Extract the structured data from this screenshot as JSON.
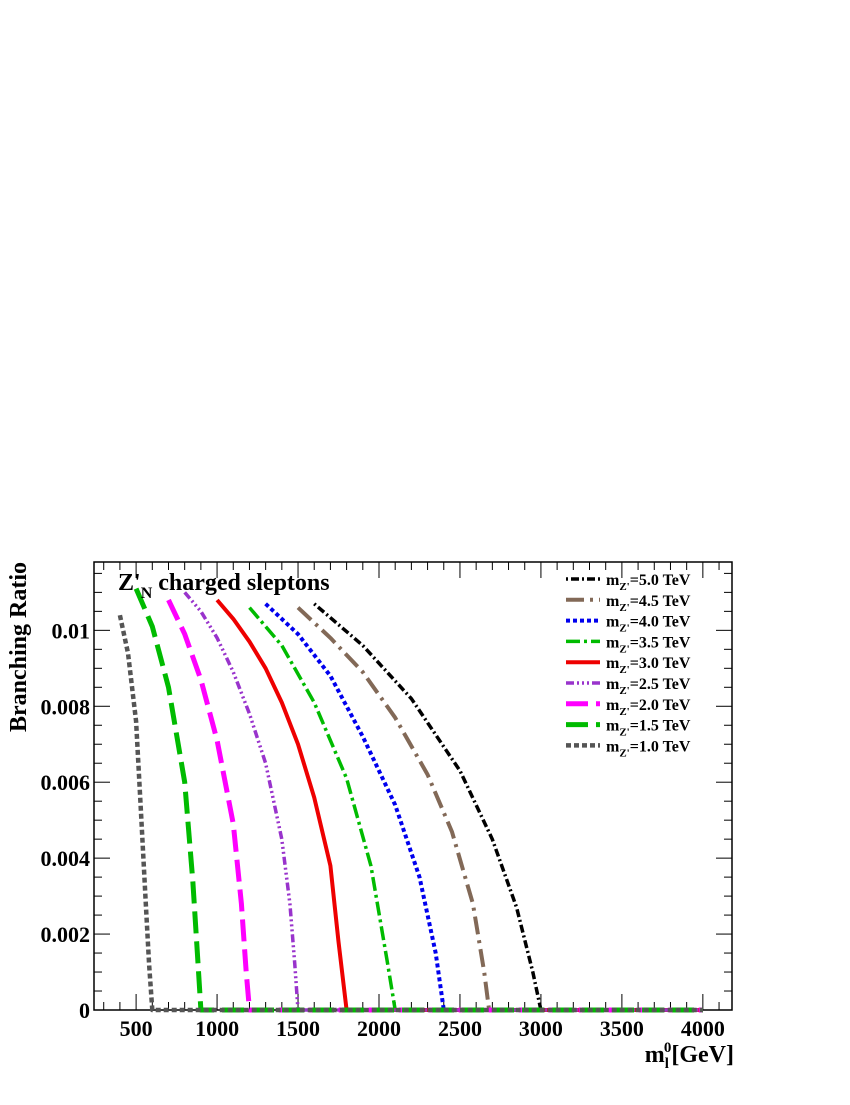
{
  "chart_data": {
    "type": "line",
    "title": "Z'",
    "title_subscript": "N",
    "title_suffix": "charged sleptons",
    "xlabel": "m",
    "xlabel_sub": "l",
    "xlabel_sup": "0",
    "xlabel_suffix": "[GeV]",
    "ylabel": "Branching Ratio",
    "xlim": [
      240,
      4180
    ],
    "ylim": [
      0,
      0.0118
    ],
    "x_ticks": [
      500,
      1000,
      1500,
      2000,
      2500,
      3000,
      3500,
      4000
    ],
    "x_tick_labels": [
      "500",
      "1000",
      "1500",
      "2000",
      "2500",
      "3000",
      "3500",
      "4000"
    ],
    "y_ticks": [
      0,
      0.002,
      0.004,
      0.006,
      0.008,
      0.01
    ],
    "y_tick_labels": [
      "0",
      "0.002",
      "0.004",
      "0.006",
      "0.008",
      "0.01"
    ],
    "grid": false,
    "legend_position": "top-right",
    "legend_prefix": "m",
    "legend_sub": "Z'",
    "series": [
      {
        "name": "=5.0 TeV",
        "color": "#000000",
        "dash": "2,3 8,3",
        "width": 3.5,
        "x": [
          1600,
          1900,
          2200,
          2500,
          2700,
          2850,
          2950,
          3000
        ],
        "y": [
          0.0107,
          0.0096,
          0.0082,
          0.0063,
          0.0045,
          0.0027,
          0.001,
          0
        ]
      },
      {
        "name": "=4.5 TeV",
        "color": "#826957",
        "dash": "18,6 3,6",
        "width": 4,
        "x": [
          1500,
          1700,
          1900,
          2100,
          2300,
          2450,
          2580,
          2650,
          2680
        ],
        "y": [
          0.0106,
          0.0098,
          0.0089,
          0.0077,
          0.0062,
          0.0047,
          0.0028,
          0.001,
          0
        ]
      },
      {
        "name": "=4.0 TeV",
        "color": "#0000ee",
        "dash": "4,3",
        "width": 4,
        "x": [
          1300,
          1500,
          1700,
          1900,
          2100,
          2250,
          2350,
          2400
        ],
        "y": [
          0.0107,
          0.0099,
          0.0088,
          0.0072,
          0.0054,
          0.0035,
          0.0015,
          0
        ]
      },
      {
        "name": "=3.5 TeV",
        "color": "#00bb00",
        "dash": "14,4 3,4",
        "width": 3.5,
        "x": [
          1200,
          1400,
          1600,
          1800,
          1950,
          2050,
          2100
        ],
        "y": [
          0.0106,
          0.0096,
          0.0081,
          0.0061,
          0.0038,
          0.0013,
          0
        ]
      },
      {
        "name": "=3.0 TeV",
        "color": "#ee0000",
        "dash": "",
        "width": 4,
        "x": [
          1000,
          1100,
          1200,
          1300,
          1400,
          1500,
          1600,
          1700,
          1750,
          1800
        ],
        "y": [
          0.0108,
          0.0103,
          0.0097,
          0.009,
          0.0081,
          0.007,
          0.0056,
          0.0038,
          0.0018,
          0
        ]
      },
      {
        "name": "=2.5 TeV",
        "color": "#9933cc",
        "dash": "8,3 2,3 2,3 2,3",
        "width": 3.5,
        "x": [
          800,
          900,
          1000,
          1100,
          1200,
          1300,
          1400,
          1450,
          1480,
          1500
        ],
        "y": [
          0.011,
          0.0105,
          0.0098,
          0.0089,
          0.0078,
          0.0065,
          0.0045,
          0.0028,
          0.0012,
          0
        ]
      },
      {
        "name": "=2.0 TeV",
        "color": "#ff00ff",
        "dash": "22,8",
        "width": 5,
        "x": [
          700,
          800,
          900,
          1000,
          1100,
          1150,
          1180,
          1200
        ],
        "y": [
          0.0108,
          0.0099,
          0.0087,
          0.0071,
          0.0049,
          0.0028,
          0.001,
          0
        ]
      },
      {
        "name": "=1.5 TeV",
        "color": "#00bb00",
        "dash": "22,8",
        "width": 5,
        "x": [
          500,
          600,
          700,
          800,
          850,
          880,
          900
        ],
        "y": [
          0.0111,
          0.0101,
          0.0085,
          0.006,
          0.0034,
          0.0014,
          0
        ]
      },
      {
        "name": "=1.0 TeV",
        "color": "#555555",
        "dash": "5,3",
        "width": 4.5,
        "x": [
          400,
          450,
          500,
          530,
          560,
          580,
          600
        ],
        "y": [
          0.0104,
          0.0094,
          0.0076,
          0.0052,
          0.0028,
          0.0012,
          0
        ]
      }
    ]
  }
}
